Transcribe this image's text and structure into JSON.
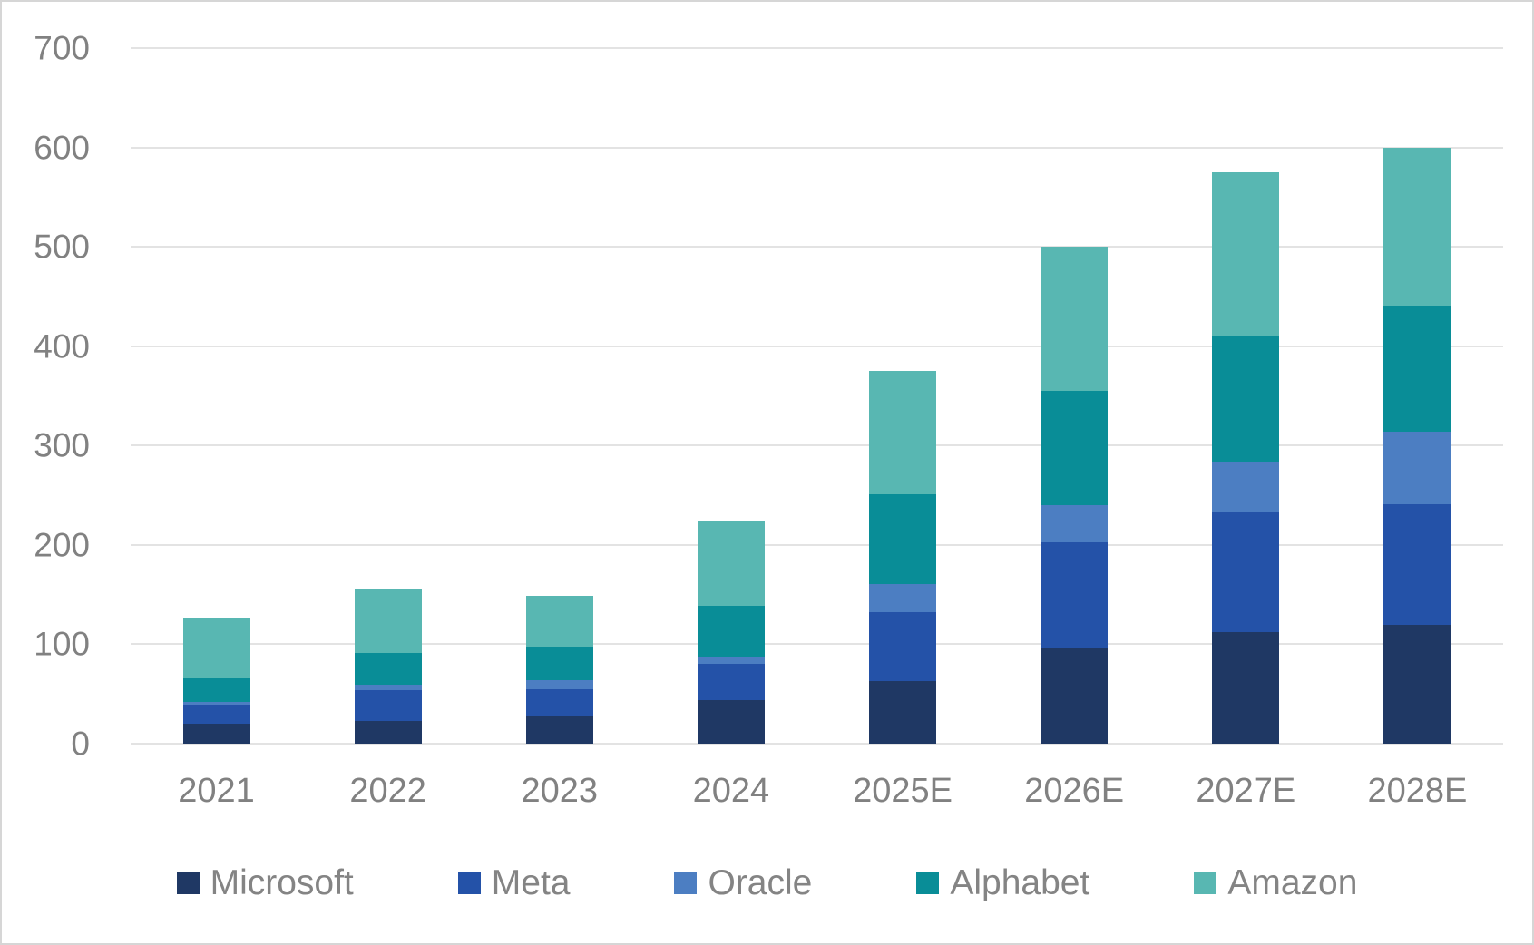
{
  "chart_data": {
    "type": "bar",
    "stacked": true,
    "title": "",
    "xlabel": "",
    "ylabel": "",
    "categories": [
      "2021",
      "2022",
      "2023",
      "2024",
      "2025E",
      "2026E",
      "2027E",
      "2028E"
    ],
    "series": [
      {
        "name": "Microsoft",
        "color": "#1F3864",
        "values": [
          20,
          23,
          27,
          44,
          63,
          96,
          112,
          120
        ]
      },
      {
        "name": "Meta",
        "color": "#2452A8",
        "values": [
          19,
          31,
          28,
          36,
          69,
          107,
          121,
          121
        ]
      },
      {
        "name": "Oracle",
        "color": "#4C7EC2",
        "values": [
          3,
          5,
          9,
          8,
          29,
          37,
          51,
          73
        ]
      },
      {
        "name": "Alphabet",
        "color": "#098D97",
        "values": [
          24,
          32,
          34,
          51,
          90,
          115,
          126,
          127
        ]
      },
      {
        "name": "Amazon",
        "color": "#58B7B2",
        "values": [
          61,
          64,
          51,
          85,
          124,
          145,
          165,
          159
        ]
      }
    ],
    "ylim": [
      0,
      700
    ],
    "y_ticks": [
      0,
      100,
      200,
      300,
      400,
      500,
      600,
      700
    ],
    "grid": true,
    "legend_position": "bottom"
  },
  "styles": {
    "grid_color": "#e3e3e3",
    "axis_text_color": "#818181",
    "legend_text_color": "#848484",
    "frame_border_color": "#d6d6d6",
    "background": "#ffffff"
  }
}
